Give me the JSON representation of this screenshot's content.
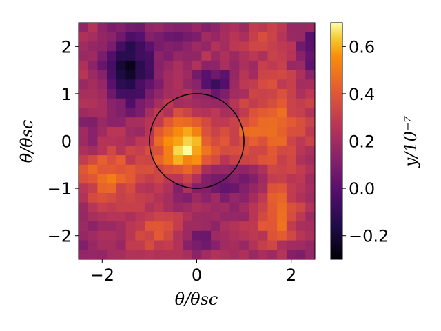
{
  "chart_data": {
    "type": "heatmap",
    "colormap": "inferno",
    "grid_size": 25,
    "x_range": [
      -2.5,
      2.5
    ],
    "y_range": [
      -2.5,
      2.5
    ],
    "color_range": [
      -0.3,
      0.7
    ],
    "xlabel": "θ/θsc",
    "ylabel": "θ/θsc",
    "colorbar_label": "y/10⁻⁷",
    "x_ticks": [
      -2,
      0,
      2
    ],
    "x_tick_labels": [
      "−2",
      "0",
      "2"
    ],
    "y_ticks": [
      -2,
      -1,
      0,
      1,
      2
    ],
    "y_tick_labels": [
      "−2",
      "−1",
      "0",
      "1",
      "2"
    ],
    "cbar_ticks": [
      -0.2,
      0.0,
      0.2,
      0.4,
      0.6
    ],
    "cbar_tick_labels": [
      "−0.2",
      "0.0",
      "0.2",
      "0.4",
      "0.6"
    ],
    "circle": {
      "center": [
        0,
        0
      ],
      "radius": 1.0,
      "color": "#000000"
    },
    "features": [
      {
        "x": 0.0,
        "y": 0.0,
        "sigma": 0.18,
        "amp": 0.01
      }
    ],
    "background": 0.22,
    "blobs": [
      {
        "x": -0.25,
        "y": -0.15,
        "sx": 0.45,
        "sy": 0.45,
        "amp": 0.43
      },
      {
        "x": -1.9,
        "y": -0.7,
        "sx": 0.45,
        "sy": 0.4,
        "amp": 0.25
      },
      {
        "x": -0.85,
        "y": -1.85,
        "sx": 0.35,
        "sy": 0.3,
        "amp": 0.18
      },
      {
        "x": 1.65,
        "y": 0.35,
        "sx": 0.45,
        "sy": 0.7,
        "amp": 0.22
      },
      {
        "x": 1.7,
        "y": -1.55,
        "sx": 0.3,
        "sy": 0.45,
        "amp": 0.25
      },
      {
        "x": 1.0,
        "y": 0.05,
        "sx": 0.3,
        "sy": 0.3,
        "amp": 0.12
      },
      {
        "x": 1.35,
        "y": 2.15,
        "sx": 0.3,
        "sy": 0.2,
        "amp": 0.14
      },
      {
        "x": -1.4,
        "y": 1.55,
        "sx": 0.38,
        "sy": 0.6,
        "amp": -0.42
      },
      {
        "x": 0.4,
        "y": 1.25,
        "sx": 0.3,
        "sy": 0.2,
        "amp": -0.28
      },
      {
        "x": 0.3,
        "y": -0.85,
        "sx": 0.3,
        "sy": 0.25,
        "amp": -0.2
      },
      {
        "x": -0.4,
        "y": -1.15,
        "sx": 0.25,
        "sy": 0.2,
        "amp": -0.14
      },
      {
        "x": 1.05,
        "y": -1.0,
        "sx": 0.3,
        "sy": 0.3,
        "amp": -0.15
      },
      {
        "x": 0.0,
        "y": -2.1,
        "sx": 0.3,
        "sy": 0.25,
        "amp": -0.16
      },
      {
        "x": -2.3,
        "y": 0.05,
        "sx": 0.2,
        "sy": 0.3,
        "amp": -0.12
      },
      {
        "x": 2.4,
        "y": 1.9,
        "sx": 0.2,
        "sy": 0.35,
        "amp": -0.25
      },
      {
        "x": 0.1,
        "y": 2.3,
        "sx": 0.5,
        "sy": 0.2,
        "amp": -0.08
      },
      {
        "x": -0.4,
        "y": 2.2,
        "sx": 0.25,
        "sy": 0.25,
        "amp": -0.1
      },
      {
        "x": -2.35,
        "y": -2.0,
        "sx": 0.2,
        "sy": 0.3,
        "amp": -0.1
      },
      {
        "x": 2.2,
        "y": -2.4,
        "sx": 0.3,
        "sy": 0.2,
        "amp": -0.1
      }
    ],
    "noise_amp": 0.06
  }
}
